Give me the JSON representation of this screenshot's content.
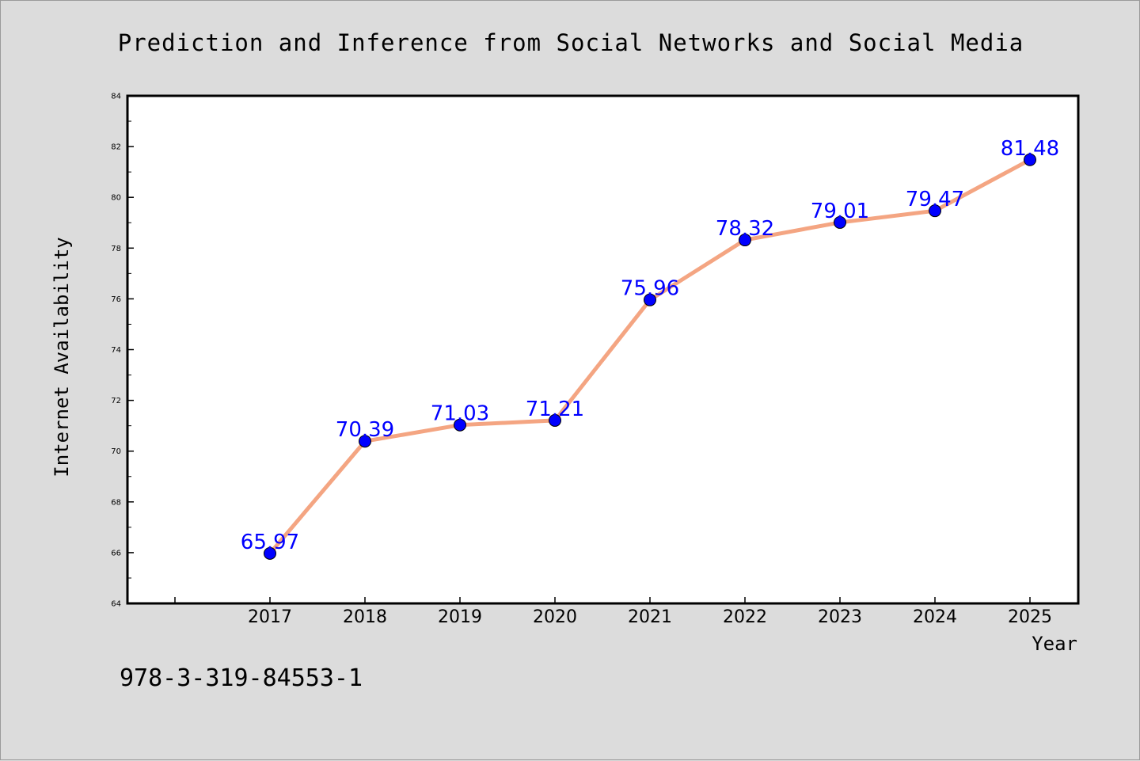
{
  "chart_data": {
    "type": "line",
    "title": "Prediction and Inference from Social Networks and Social Media",
    "xlabel": "Year",
    "ylabel": "Internet Availability",
    "categories": [
      "2017",
      "2018",
      "2019",
      "2020",
      "2021",
      "2022",
      "2023",
      "2024",
      "2025"
    ],
    "series": [
      {
        "values": [
          65.97,
          70.39,
          71.03,
          71.21,
          75.96,
          78.32,
          79.01,
          79.47,
          81.48
        ],
        "data_labels": [
          "65.97",
          "70.39",
          "71.03",
          "71.21",
          "75.96",
          "78.32",
          "79.01",
          "79.47",
          "81.48"
        ],
        "line_color": "#f4a582",
        "marker_color": "#0000ff",
        "label_color": "#0000ff"
      }
    ],
    "ylim": [
      64,
      84
    ],
    "yticks": [
      "64",
      "66",
      "68",
      "70",
      "72",
      "74",
      "76",
      "78",
      "80",
      "82",
      "84"
    ],
    "grid": false,
    "legend": "none"
  },
  "footer": {
    "isbn": "978-3-319-84553-1"
  },
  "colors": {
    "background": "#dcdcdc",
    "plot_background": "#ffffff"
  }
}
